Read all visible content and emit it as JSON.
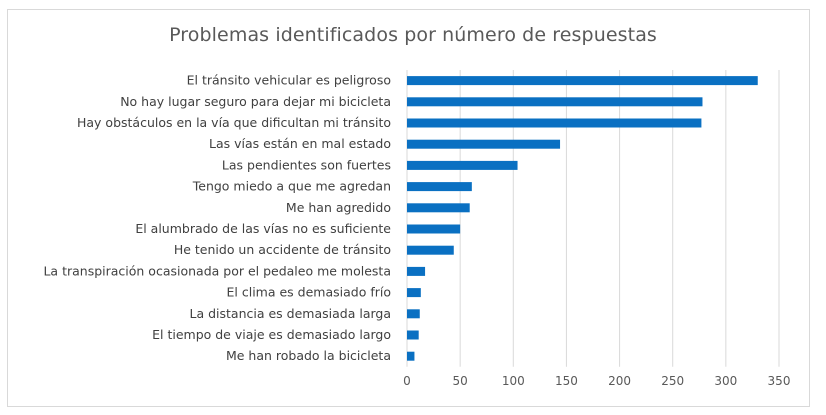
{
  "chart_data": {
    "type": "bar",
    "orientation": "horizontal",
    "title": "Problemas identificados por número de respuestas",
    "categories": [
      "El tránsito vehicular es peligroso",
      "No hay lugar seguro para dejar mi bicicleta",
      "Hay obstáculos en la vía que dificultan mi tránsito",
      "Las vías están en mal estado",
      "Las pendientes son fuertes",
      "Tengo miedo a que me agredan",
      "Me han agredido",
      "El alumbrado de las vías no es suficiente",
      "He tenido un accidente de tránsito",
      "La transpiración ocasionada por el pedaleo me molesta",
      "El clima es demasiado frío",
      "La distancia es demasiada larga",
      "El tiempo de viaje es demasiado largo",
      "Me han robado la bicicleta"
    ],
    "values": [
      330,
      278,
      277,
      144,
      104,
      61,
      59,
      50,
      44,
      17,
      13,
      12,
      11,
      7
    ],
    "xlim": [
      0,
      350
    ],
    "xticks": [
      "0",
      "50",
      "100",
      "150",
      "200",
      "250",
      "300",
      "350"
    ],
    "grid": true,
    "bar_color": "#0a70c2",
    "grid_color": "#d9d9d9"
  }
}
